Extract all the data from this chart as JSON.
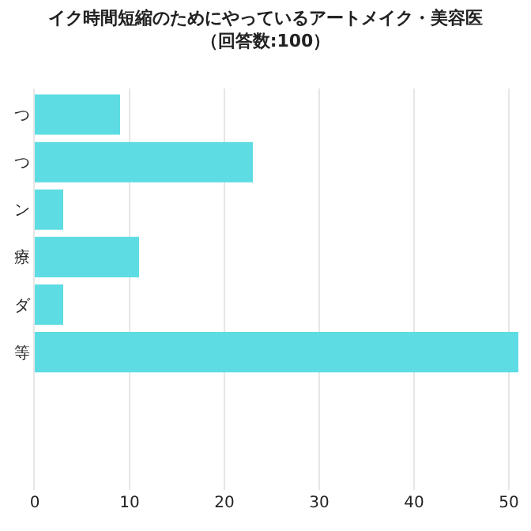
{
  "chart_data": {
    "type": "bar",
    "orientation": "horizontal",
    "title": "イク時間短縮のためにやっているアートメイク・美容医",
    "subtitle": "（回答数:100）",
    "categories": [
      "つ",
      "つ",
      "ン",
      "療",
      "ダ",
      "等"
    ],
    "values": [
      9,
      23,
      3,
      11,
      3,
      51
    ],
    "color": "#5ddde3",
    "xlim": [
      0,
      51
    ],
    "xticks": [
      0,
      10,
      20,
      30,
      40,
      50
    ],
    "grid": "x"
  }
}
